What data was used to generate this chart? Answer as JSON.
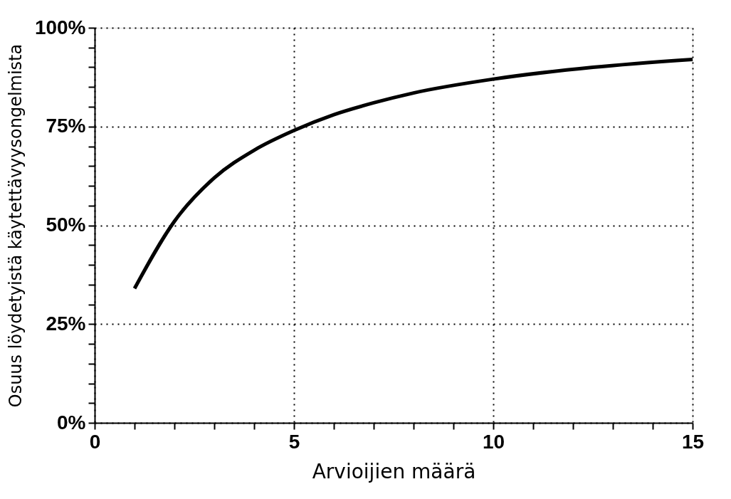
{
  "chart_data": {
    "type": "line",
    "xlabel": "Arvioijien määrä",
    "ylabel": "Osuus löydetyistä käytettävyysongelmista",
    "x": [
      1,
      2,
      3,
      4,
      5,
      6,
      7,
      8,
      10,
      12.5,
      15
    ],
    "series": [
      {
        "color": "#000000",
        "values": [
          34,
          51,
          62,
          69,
          74,
          78,
          81,
          83.5,
          87,
          90,
          92
        ]
      }
    ],
    "xlim": [
      0,
      15
    ],
    "ylim": [
      0,
      100
    ],
    "xticks": [
      0,
      {
        "value": 1,
        "label": null
      },
      {
        "value": 2,
        "label": null
      },
      {
        "value": 3,
        "label": null
      },
      {
        "value": 4,
        "label": null
      },
      5,
      {
        "value": 6,
        "label": null
      },
      {
        "value": 7,
        "label": null
      },
      {
        "value": 8,
        "label": null
      },
      {
        "value": 9,
        "label": null
      },
      10,
      {
        "value": 11,
        "label": null
      },
      {
        "value": 12,
        "label": null
      },
      {
        "value": 13,
        "label": null
      },
      {
        "value": 14,
        "label": null
      },
      15
    ],
    "yticks": [
      {
        "value": 0,
        "label": "0%"
      },
      {
        "value": 5,
        "label": null
      },
      {
        "value": 10,
        "label": null
      },
      {
        "value": 15,
        "label": null
      },
      {
        "value": 20,
        "label": null
      },
      {
        "value": 25,
        "label": "25%"
      },
      {
        "value": 30,
        "label": null
      },
      {
        "value": 35,
        "label": null
      },
      {
        "value": 40,
        "label": null
      },
      {
        "value": 45,
        "label": null
      },
      {
        "value": 50,
        "label": "50%"
      },
      {
        "value": 55,
        "label": null
      },
      {
        "value": 60,
        "label": null
      },
      {
        "value": 65,
        "label": null
      },
      {
        "value": 70,
        "label": null
      },
      {
        "value": 75,
        "label": "75%"
      },
      {
        "value": 80,
        "label": null
      },
      {
        "value": 85,
        "label": null
      },
      {
        "value": 90,
        "label": null
      },
      {
        "value": 95,
        "label": null
      },
      {
        "value": 100,
        "label": "100%"
      }
    ],
    "grid": true,
    "marker": "none",
    "line_style": "solid"
  }
}
